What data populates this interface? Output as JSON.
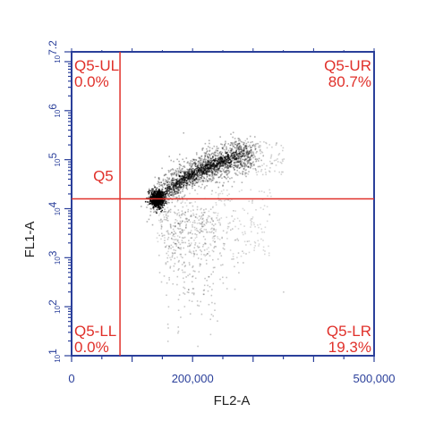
{
  "chart_data": {
    "type": "scatter",
    "xlabel": "FL2-A",
    "ylabel": "FL1-A",
    "x_scale": "linear",
    "y_scale": "log",
    "xlim": [
      0,
      500000
    ],
    "ylim": [
      1,
      7.2
    ],
    "x_ticks": [
      {
        "value": 0,
        "label": "0"
      },
      {
        "value": 200000,
        "label": "200,000"
      },
      {
        "value": 500000,
        "label": "500,000"
      }
    ],
    "y_ticks": [
      {
        "value": 1,
        "base": "10",
        "exp": "1"
      },
      {
        "value": 2,
        "base": "10",
        "exp": "2"
      },
      {
        "value": 3,
        "base": "10",
        "exp": "3"
      },
      {
        "value": 4,
        "base": "10",
        "exp": "4"
      },
      {
        "value": 5,
        "base": "10",
        "exp": "5"
      },
      {
        "value": 6,
        "base": "10",
        "exp": "6"
      },
      {
        "value": 7.2,
        "base": "10",
        "exp": "7.2"
      }
    ],
    "gate": {
      "name": "Q5",
      "x_divider": 80000,
      "y_divider": 4.2
    },
    "quadrants": [
      {
        "name": "Q5-UL",
        "percent": "0.0%"
      },
      {
        "name": "Q5-UR",
        "percent": "80.7%"
      },
      {
        "name": "Q5-LL",
        "percent": "0.0%"
      },
      {
        "name": "Q5-LR",
        "percent": "19.3%"
      }
    ],
    "population_trend": [
      {
        "x": 140000,
        "y": 4.25
      },
      {
        "x": 180000,
        "y": 4.6
      },
      {
        "x": 230000,
        "y": 4.9
      },
      {
        "x": 280000,
        "y": 5.1
      }
    ],
    "colors": {
      "axis": "#2a3f9a",
      "gate": "#e0302a",
      "axis_title": "#222222"
    }
  }
}
